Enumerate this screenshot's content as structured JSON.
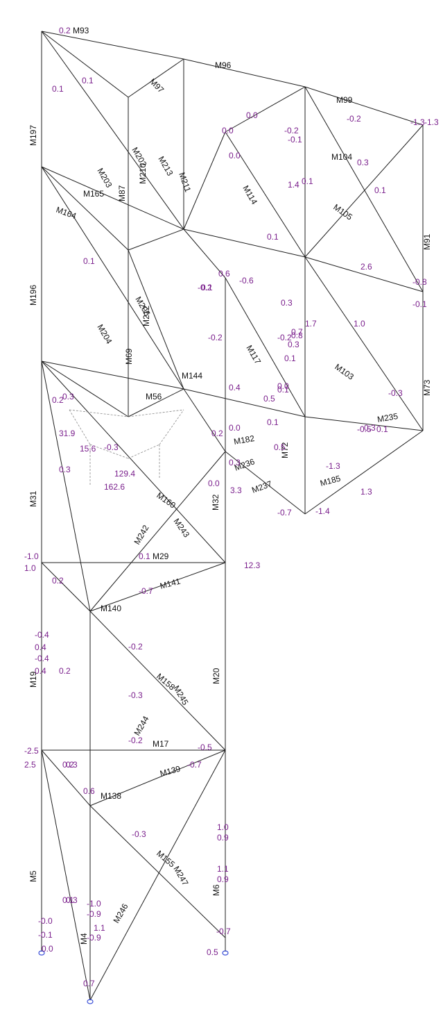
{
  "colors": {
    "member": "#1e1e1e",
    "value": "#7a1f8c",
    "support": "#3a4fd8",
    "background": "#ffffff"
  },
  "member_labels": [
    "M93",
    "M96",
    "M97",
    "M99",
    "M197",
    "M203",
    "M202",
    "M87",
    "M210",
    "M213",
    "M211",
    "M114",
    "M104",
    "M105",
    "M91",
    "M165",
    "M164",
    "M196",
    "M204",
    "M205",
    "M212",
    "M69",
    "M144",
    "M56",
    "M117",
    "M103",
    "M73",
    "M235",
    "M182",
    "M185",
    "M237",
    "M236",
    "M72",
    "M31",
    "M32",
    "M160",
    "M243",
    "M242",
    "M29",
    "M141",
    "M140",
    "M158",
    "M245",
    "M20",
    "M19",
    "M244",
    "M17",
    "M139",
    "M138",
    "M155",
    "M247",
    "M246",
    "M5",
    "M6",
    "M4"
  ],
  "values": [
    "0.2",
    "0.1",
    "0.1",
    "-0.2",
    "-1.3",
    "0.3",
    "0.1",
    "0.0",
    "-0.1",
    "-0.2",
    "0.1",
    "0.0",
    "0.3",
    "-0.2",
    "0.1",
    "-0.3",
    "-1.3",
    "-0.8",
    "0.1",
    "1.4",
    "0.2",
    "-0.3",
    "0.1",
    "0.2",
    "-0.2",
    "-0.5",
    "0.3",
    "0.1",
    "0.0",
    "0.3",
    "0.0",
    "0.5",
    "-0.7",
    "0.3",
    "-0.2",
    "0.3",
    "-0.7",
    "1.0",
    "0.2",
    "0.1",
    "-0.3",
    "0.3",
    "-0.7",
    "3.3",
    "1.3",
    "1.7",
    "0.1",
    "-1.3",
    "0.0",
    "-1.4",
    "12.3",
    "162.6",
    "129.4",
    "15.6",
    "31.9",
    "-0.4",
    "0.4",
    "-0.4",
    "0.4",
    "0.2",
    "-0.2",
    "0.1",
    "-0.3",
    "1.0",
    "0.9",
    "1.1",
    "0.9",
    "-1.0",
    "-0.9",
    "1.1",
    "-0.9",
    "0.7",
    "-0.7",
    "0.3",
    "0.2",
    "-0.0",
    "-0.1",
    "-2.5",
    "2.5",
    "-1.0",
    "1.0",
    "0.0",
    "-0.5",
    "0.5",
    "0.6",
    "0.8",
    "-0.6",
    "2.6",
    "0.4",
    "0.7",
    "-0.2",
    "0.0",
    "0.1",
    "0.6",
    "0.3",
    "0.1",
    "0.5",
    "-0.1",
    "0.2"
  ]
}
